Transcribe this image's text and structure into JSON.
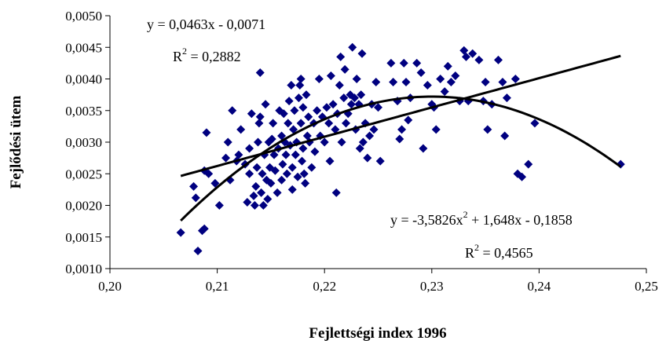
{
  "chart_data": {
    "type": "scatter",
    "xlabel": "Fejlettségi index 1996",
    "ylabel": "Fejlődési ütem",
    "xlim": [
      0.2,
      0.25
    ],
    "ylim": [
      0.001,
      0.005
    ],
    "x_ticks": [
      "0,20",
      "0,21",
      "0,22",
      "0,23",
      "0,24",
      "0,25"
    ],
    "y_ticks": [
      "0,0010",
      "0,0015",
      "0,0020",
      "0,0025",
      "0,0030",
      "0,0035",
      "0,0040",
      "0,0045",
      "0,0050"
    ],
    "grid": false,
    "marker_color": "#000080",
    "trend_color": "#000000",
    "series": [
      {
        "marker": "diamond",
        "points": [
          [
            0.2066,
            0.00157
          ],
          [
            0.2082,
            0.00128
          ],
          [
            0.2086,
            0.0016
          ],
          [
            0.2088,
            0.00163
          ],
          [
            0.2078,
            0.0023
          ],
          [
            0.208,
            0.00212
          ],
          [
            0.2088,
            0.00255
          ],
          [
            0.209,
            0.00315
          ],
          [
            0.2092,
            0.0025
          ],
          [
            0.2098,
            0.00235
          ],
          [
            0.2102,
            0.002
          ],
          [
            0.2108,
            0.00275
          ],
          [
            0.211,
            0.003
          ],
          [
            0.2112,
            0.0024
          ],
          [
            0.2114,
            0.0035
          ],
          [
            0.2118,
            0.0027
          ],
          [
            0.212,
            0.0028
          ],
          [
            0.2122,
            0.0032
          ],
          [
            0.2126,
            0.00265
          ],
          [
            0.2128,
            0.00205
          ],
          [
            0.213,
            0.0025
          ],
          [
            0.213,
            0.0029
          ],
          [
            0.2132,
            0.00345
          ],
          [
            0.2134,
            0.00215
          ],
          [
            0.2135,
            0.002
          ],
          [
            0.2136,
            0.0023
          ],
          [
            0.2137,
            0.0026
          ],
          [
            0.2138,
            0.003
          ],
          [
            0.2139,
            0.0033
          ],
          [
            0.214,
            0.0034
          ],
          [
            0.214,
            0.0041
          ],
          [
            0.2141,
            0.0022
          ],
          [
            0.2142,
            0.0025
          ],
          [
            0.2143,
            0.002
          ],
          [
            0.2144,
            0.0028
          ],
          [
            0.2145,
            0.0036
          ],
          [
            0.2146,
            0.0024
          ],
          [
            0.2147,
            0.0021
          ],
          [
            0.2148,
            0.003
          ],
          [
            0.2149,
            0.0026
          ],
          [
            0.215,
            0.00235
          ],
          [
            0.2151,
            0.00305
          ],
          [
            0.2152,
            0.0033
          ],
          [
            0.2153,
            0.0028
          ],
          [
            0.2154,
            0.00255
          ],
          [
            0.2156,
            0.0022
          ],
          [
            0.2157,
            0.0029
          ],
          [
            0.2158,
            0.0035
          ],
          [
            0.216,
            0.0024
          ],
          [
            0.216,
            0.0031
          ],
          [
            0.2161,
            0.00265
          ],
          [
            0.2162,
            0.00345
          ],
          [
            0.2163,
            0.003
          ],
          [
            0.2164,
            0.0028
          ],
          [
            0.2165,
            0.0025
          ],
          [
            0.2166,
            0.0033
          ],
          [
            0.2167,
            0.00365
          ],
          [
            0.2168,
            0.00295
          ],
          [
            0.2169,
            0.0039
          ],
          [
            0.217,
            0.0026
          ],
          [
            0.217,
            0.00225
          ],
          [
            0.2171,
            0.0032
          ],
          [
            0.2172,
            0.0035
          ],
          [
            0.2173,
            0.0028
          ],
          [
            0.2174,
            0.003
          ],
          [
            0.2175,
            0.00245
          ],
          [
            0.2176,
            0.0037
          ],
          [
            0.2177,
            0.0039
          ],
          [
            0.2178,
            0.004
          ],
          [
            0.2178,
            0.0033
          ],
          [
            0.2179,
            0.0027
          ],
          [
            0.218,
            0.00355
          ],
          [
            0.218,
            0.0029
          ],
          [
            0.2181,
            0.0025
          ],
          [
            0.2182,
            0.00235
          ],
          [
            0.2183,
            0.00375
          ],
          [
            0.2184,
            0.0031
          ],
          [
            0.2185,
            0.0034
          ],
          [
            0.2186,
            0.003
          ],
          [
            0.2188,
            0.0026
          ],
          [
            0.219,
            0.0033
          ],
          [
            0.2191,
            0.00285
          ],
          [
            0.2193,
            0.0035
          ],
          [
            0.2195,
            0.004
          ],
          [
            0.2196,
            0.0031
          ],
          [
            0.2198,
            0.0034
          ],
          [
            0.22,
            0.003
          ],
          [
            0.2202,
            0.00355
          ],
          [
            0.2204,
            0.0033
          ],
          [
            0.2205,
            0.0027
          ],
          [
            0.2206,
            0.00405
          ],
          [
            0.2208,
            0.0036
          ],
          [
            0.221,
            0.0032
          ],
          [
            0.2211,
            0.0022
          ],
          [
            0.2212,
            0.00345
          ],
          [
            0.2214,
            0.0039
          ],
          [
            0.2215,
            0.00435
          ],
          [
            0.2216,
            0.003
          ],
          [
            0.2218,
            0.0037
          ],
          [
            0.2219,
            0.00415
          ],
          [
            0.222,
            0.0033
          ],
          [
            0.2222,
            0.00345
          ],
          [
            0.2224,
            0.00375
          ],
          [
            0.2225,
            0.0036
          ],
          [
            0.2226,
            0.0045
          ],
          [
            0.2228,
            0.0037
          ],
          [
            0.2229,
            0.0032
          ],
          [
            0.223,
            0.004
          ],
          [
            0.2232,
            0.0036
          ],
          [
            0.2233,
            0.0029
          ],
          [
            0.2234,
            0.00375
          ],
          [
            0.2235,
            0.0044
          ],
          [
            0.2236,
            0.003
          ],
          [
            0.2238,
            0.0033
          ],
          [
            0.224,
            0.00275
          ],
          [
            0.2242,
            0.0031
          ],
          [
            0.2244,
            0.0036
          ],
          [
            0.2246,
            0.0032
          ],
          [
            0.2248,
            0.00395
          ],
          [
            0.225,
            0.00355
          ],
          [
            0.2252,
            0.0027
          ],
          [
            0.2262,
            0.00425
          ],
          [
            0.2264,
            0.00395
          ],
          [
            0.2268,
            0.00365
          ],
          [
            0.227,
            0.00305
          ],
          [
            0.2272,
            0.0032
          ],
          [
            0.2274,
            0.00425
          ],
          [
            0.2276,
            0.00395
          ],
          [
            0.2278,
            0.00335
          ],
          [
            0.228,
            0.0037
          ],
          [
            0.2286,
            0.00425
          ],
          [
            0.229,
            0.0041
          ],
          [
            0.2292,
            0.0029
          ],
          [
            0.2296,
            0.0039
          ],
          [
            0.23,
            0.0036
          ],
          [
            0.2302,
            0.00355
          ],
          [
            0.2304,
            0.0032
          ],
          [
            0.2308,
            0.004
          ],
          [
            0.2312,
            0.0038
          ],
          [
            0.2315,
            0.0042
          ],
          [
            0.2318,
            0.00395
          ],
          [
            0.2322,
            0.00405
          ],
          [
            0.2326,
            0.00365
          ],
          [
            0.233,
            0.00445
          ],
          [
            0.2332,
            0.00435
          ],
          [
            0.2334,
            0.00365
          ],
          [
            0.2338,
            0.0044
          ],
          [
            0.2344,
            0.0043
          ],
          [
            0.2348,
            0.00365
          ],
          [
            0.235,
            0.00395
          ],
          [
            0.2352,
            0.0032
          ],
          [
            0.2356,
            0.0036
          ],
          [
            0.2362,
            0.0043
          ],
          [
            0.2366,
            0.00395
          ],
          [
            0.2368,
            0.0031
          ],
          [
            0.237,
            0.0037
          ],
          [
            0.2378,
            0.004
          ],
          [
            0.238,
            0.0025
          ],
          [
            0.2384,
            0.00245
          ],
          [
            0.239,
            0.00265
          ],
          [
            0.2396,
            0.0033
          ],
          [
            0.2476,
            0.00265
          ]
        ]
      }
    ],
    "trendlines": [
      {
        "kind": "linear",
        "coefficients": [
          -0.0071,
          0.0463
        ],
        "x_range": [
          0.2066,
          0.2476
        ],
        "equation": "y = 0,0463x - 0,0071",
        "r2_label": "R",
        "r2_value": " = 0,2882"
      },
      {
        "kind": "quadratic",
        "coefficients": [
          -0.1858,
          1.648,
          -3.5826
        ],
        "x_range": [
          0.2066,
          0.2476
        ],
        "equation_part1": "y = -3,5826x",
        "equation_part2": " + 1,648x - 0,1858",
        "r2_label": "R",
        "r2_value": " = 0,4565"
      }
    ]
  }
}
